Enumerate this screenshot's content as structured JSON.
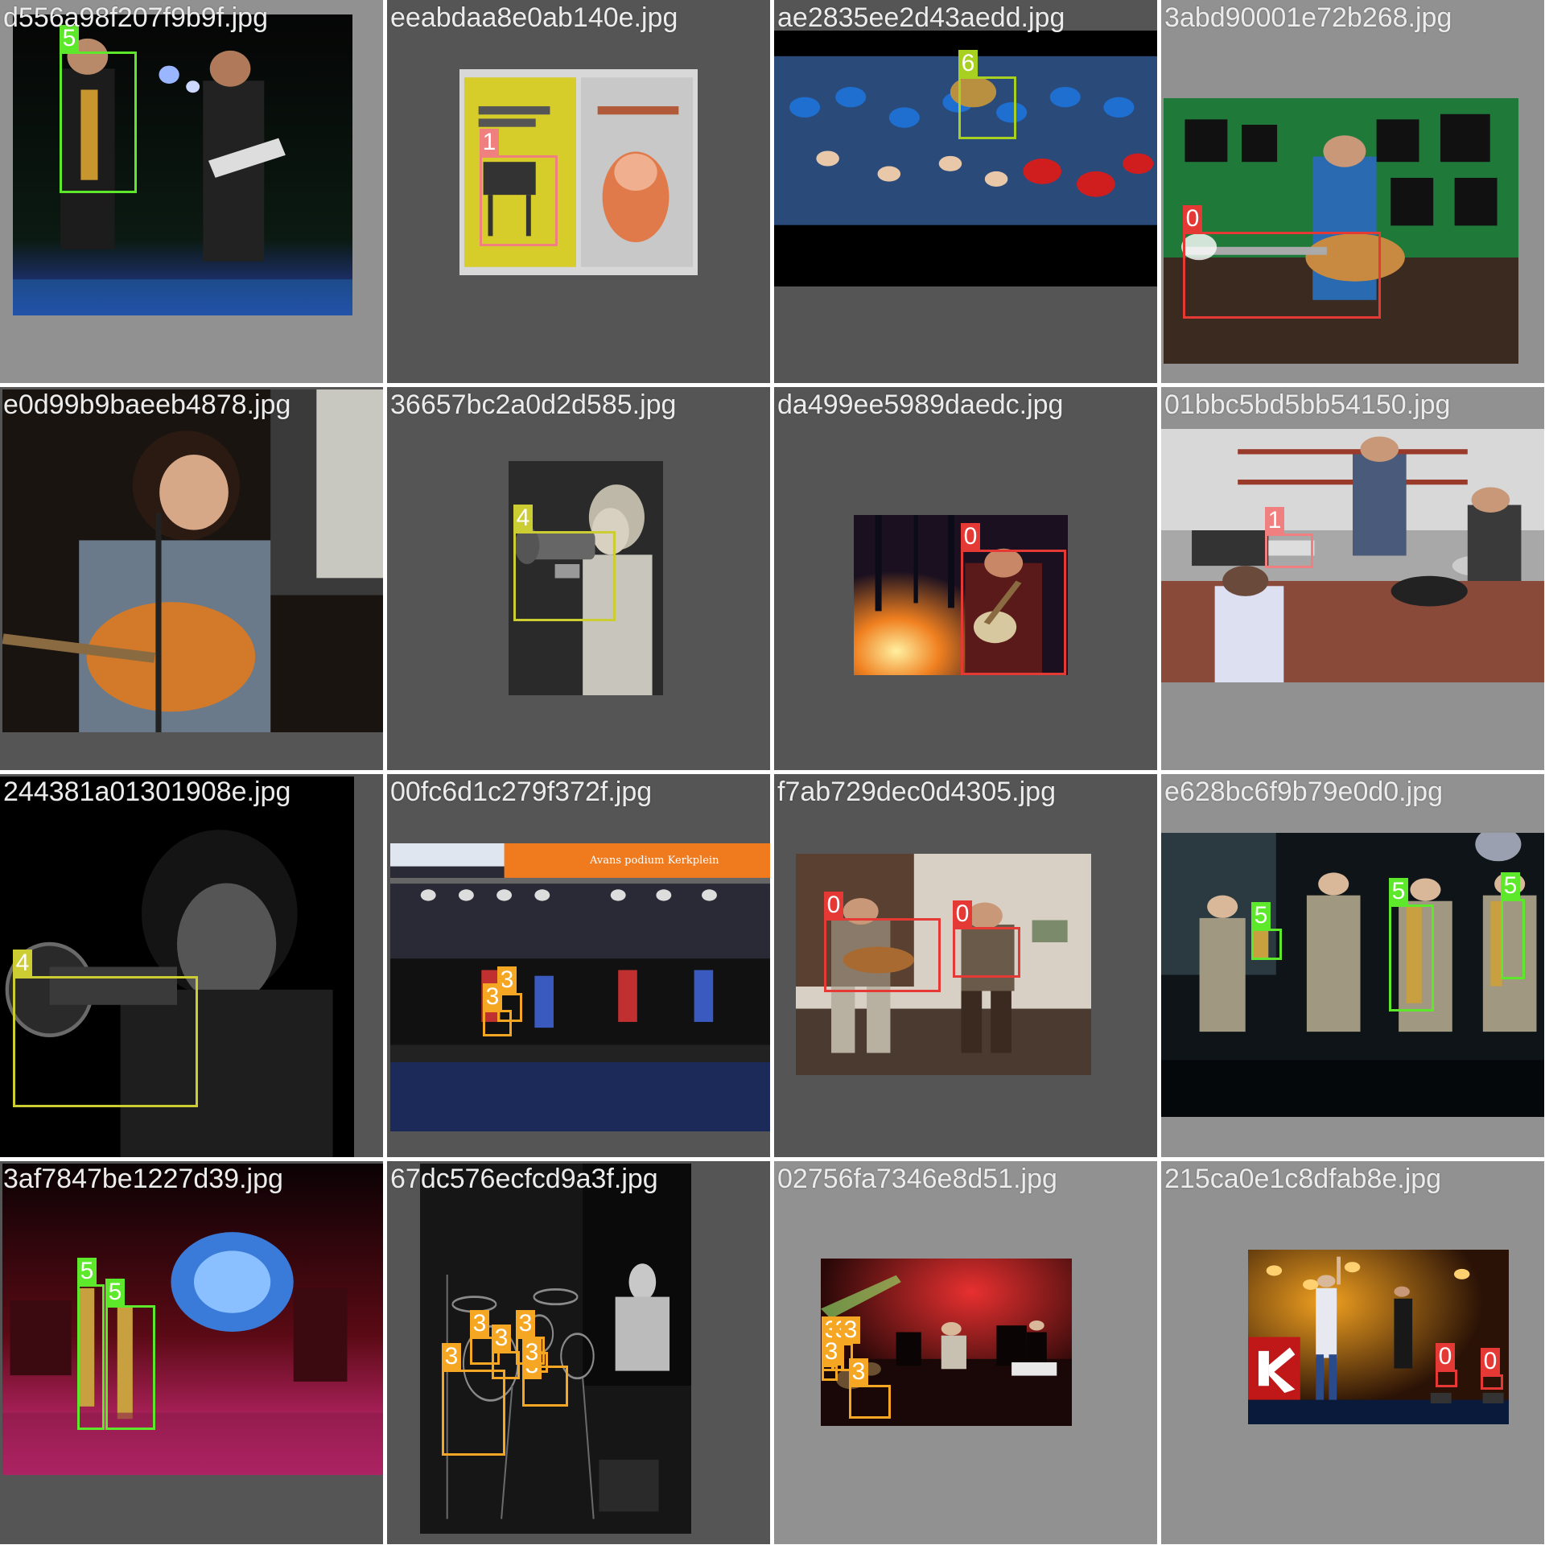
{
  "class_colors": {
    "0": "#e53935",
    "1": "#f08080",
    "3": "#f5a623",
    "4": "#cccc33",
    "5": "#5ee82b",
    "6": "#a8d020"
  },
  "tiles": [
    {
      "filename": "d556a98f207f9b9f.jpg",
      "photo_subject": "saxophonist-and-guitarist-icon",
      "boxes": [
        {
          "label": "5"
        }
      ]
    },
    {
      "filename": "eeabdaa8e0ab140e.jpg",
      "photo_subject": "concert-posters-icon",
      "boxes": [
        {
          "label": "1"
        }
      ]
    },
    {
      "filename": "ae2835ee2d43aedd.jpg",
      "photo_subject": "sports-crowd-icon",
      "boxes": [
        {
          "label": "6"
        }
      ]
    },
    {
      "filename": "3abd90001e72b268.jpg",
      "photo_subject": "acoustic-guitarist-icon",
      "boxes": [
        {
          "label": "0"
        }
      ]
    },
    {
      "filename": "e0d99b9baeeb4878.jpg",
      "photo_subject": "singer-with-guitar-icon",
      "boxes": []
    },
    {
      "filename": "36657bc2a0d2d585.jpg",
      "photo_subject": "girl-with-trumpet-icon",
      "boxes": [
        {
          "label": "4"
        }
      ]
    },
    {
      "filename": "da499ee5989daedc.jpg",
      "photo_subject": "banjo-by-campfire-icon",
      "boxes": [
        {
          "label": "0"
        }
      ]
    },
    {
      "filename": "01bbc5bd5bb54150.jpg",
      "photo_subject": "band-rehearsal-icon",
      "boxes": [
        {
          "label": "1"
        }
      ]
    },
    {
      "filename": "244381a01301908e.jpg",
      "photo_subject": "trumpet-player-icon",
      "boxes": [
        {
          "label": "4"
        }
      ]
    },
    {
      "filename": "00fc6d1c279f372f.jpg",
      "photo_subject": "outdoor-stage-icon",
      "stage_banner": "Avans podium Kerkplein",
      "boxes": [
        {
          "label": "3"
        },
        {
          "label": "3"
        }
      ]
    },
    {
      "filename": "f7ab729dec0d4305.jpg",
      "photo_subject": "two-guitarists-seated-icon",
      "boxes": [
        {
          "label": "0"
        },
        {
          "label": "0"
        }
      ]
    },
    {
      "filename": "e628bc6f9b79e0d0.jpg",
      "photo_subject": "brass-band-stage-icon",
      "boxes": [
        {
          "label": "5"
        },
        {
          "label": "5"
        },
        {
          "label": "5"
        }
      ]
    },
    {
      "filename": "3af7847be1227d39.jpg",
      "photo_subject": "red-lit-stage-icon",
      "boxes": [
        {
          "label": "5"
        },
        {
          "label": "5"
        }
      ]
    },
    {
      "filename": "67dc576ecfcd9a3f.jpg",
      "photo_subject": "drummer-bw-icon",
      "boxes": [
        {
          "label": "3"
        },
        {
          "label": "3"
        },
        {
          "label": "3"
        },
        {
          "label": "3"
        },
        {
          "label": "3"
        },
        {
          "label": "3"
        }
      ]
    },
    {
      "filename": "02756fa7346e8d51.jpg",
      "photo_subject": "red-orchestra-stage-icon",
      "boxes": [
        {
          "label": "3"
        },
        {
          "label": "3"
        },
        {
          "label": "3"
        },
        {
          "label": "3"
        },
        {
          "label": "3"
        }
      ]
    },
    {
      "filename": "215ca0e1c8dfab8e.jpg",
      "photo_subject": "festival-stage-icon",
      "boxes": [
        {
          "label": "0"
        },
        {
          "label": "0"
        }
      ]
    }
  ]
}
